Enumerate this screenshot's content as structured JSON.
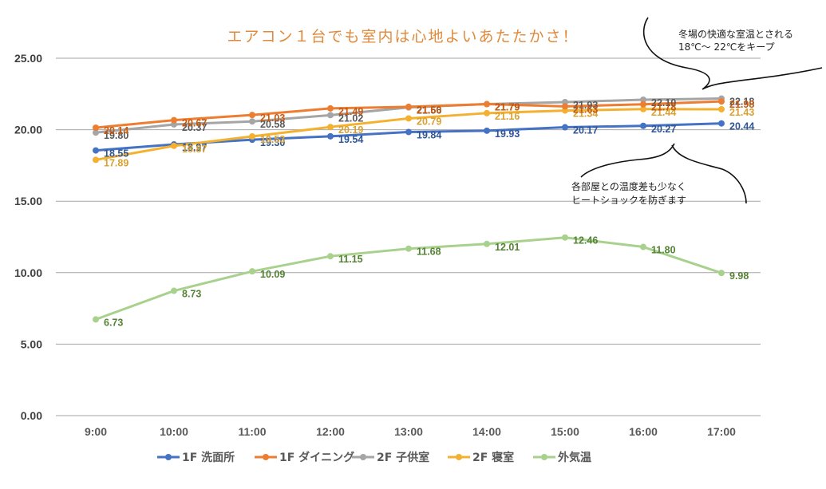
{
  "chart_data": {
    "type": "line",
    "title": "エアコン１台でも室内は心地よいあたたかさ！",
    "xlabel": "",
    "ylabel": "",
    "x": [
      "9:00",
      "10:00",
      "11:00",
      "12:00",
      "13:00",
      "14:00",
      "15:00",
      "16:00",
      "17:00"
    ],
    "ylim": [
      0,
      25
    ],
    "yticks": [
      "0.00",
      "5.00",
      "10.00",
      "15.00",
      "20.00",
      "25.00"
    ],
    "ytick_values": [
      0,
      5,
      10,
      15,
      20,
      25
    ],
    "grid": true,
    "legend_position": "bottom",
    "series": [
      {
        "name": "1F 洗面所",
        "color": "#4472C4",
        "label_color": "#2F5597",
        "values": [
          18.55,
          18.97,
          19.3,
          19.54,
          19.84,
          19.93,
          20.17,
          20.27,
          20.44
        ],
        "labels": [
          "18.55",
          "18.97",
          "19.30",
          "19.54",
          "19.84",
          "19.93",
          "20.17",
          "20.27",
          "20.44"
        ]
      },
      {
        "name": "1F ダイニング",
        "color": "#ED7D31",
        "label_color": "#C55A11",
        "values": [
          20.14,
          20.67,
          21.03,
          21.49,
          21.6,
          21.79,
          21.63,
          21.78,
          21.98
        ],
        "labels": [
          "20.14",
          "20.67",
          "21.03",
          "21.49",
          "21.60",
          "21.79",
          "21.63",
          "21.78",
          "21.98"
        ]
      },
      {
        "name": "2F 子供室",
        "color": "#A5A5A5",
        "label_color": "#595959",
        "values": [
          19.8,
          20.37,
          20.58,
          21.02,
          21.56,
          21.79,
          21.93,
          22.1,
          22.18
        ],
        "labels": [
          "19.80",
          "20.37",
          "20.58",
          "21.02",
          "21.56",
          "21.79",
          "21.93",
          "22.10",
          "22.18"
        ]
      },
      {
        "name": "2F 寝室",
        "color": "#F4B130",
        "label_color": "#D9A032",
        "values": [
          17.89,
          18.87,
          19.53,
          20.19,
          20.79,
          21.16,
          21.34,
          21.44,
          21.43
        ],
        "labels": [
          "17.89",
          "18.87",
          "19.53",
          "20.19",
          "20.79",
          "21.16",
          "21.34",
          "21.44",
          "21.43"
        ]
      },
      {
        "name": "外気温",
        "color": "#A9D18E",
        "label_color": "#548235",
        "values": [
          6.73,
          8.73,
          10.09,
          11.15,
          11.68,
          12.01,
          12.46,
          11.8,
          9.98
        ],
        "labels": [
          "6.73",
          "8.73",
          "10.09",
          "11.15",
          "11.68",
          "12.01",
          "12.46",
          "11.80",
          "9.98"
        ]
      }
    ],
    "annotations": [
      {
        "id": "note-top",
        "lines": [
          "冬場の快適な室温とされる",
          "18℃～ 22℃をキープ"
        ]
      },
      {
        "id": "note-bottom",
        "lines": [
          "各部屋との温度差も少なく",
          "ヒートショックを防ぎます"
        ]
      }
    ]
  }
}
